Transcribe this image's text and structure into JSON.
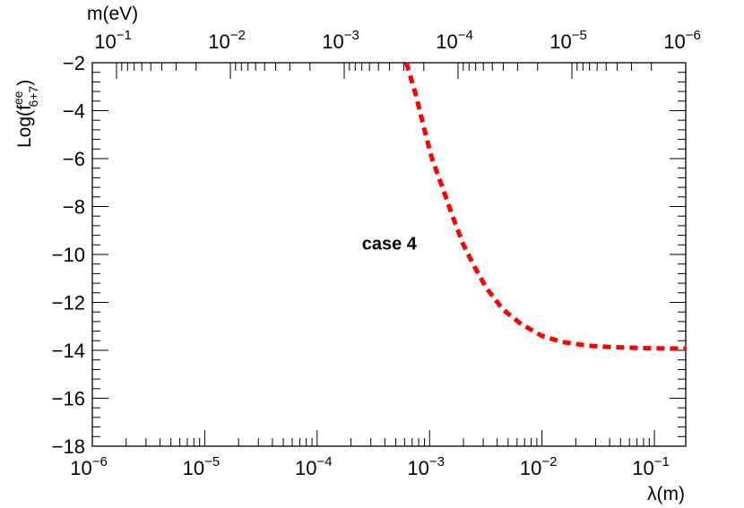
{
  "chart_data": {
    "type": "line",
    "title": "",
    "xlabel": "λ(m)",
    "ylabel": "Log(f",
    "ylabel_sup": "ee",
    "ylabel_sub": "6+7",
    "ylabel_close": ")",
    "x2label": "m(eV)",
    "xscale": "log",
    "x2scale": "log",
    "xlim": [
      1e-06,
      0.19
    ],
    "ylim": [
      -18,
      -2
    ],
    "x_ticks": [
      "10^-6",
      "10^-5",
      "10^-4",
      "10^-3",
      "10^-2",
      "10^-1"
    ],
    "x2_ticks": [
      "10^-1",
      "10^-2",
      "10^-3",
      "10^-4",
      "10^-5",
      "10^-6"
    ],
    "y_ticks": [
      "−2",
      "−4",
      "−6",
      "−8",
      "−10",
      "−12",
      "−14",
      "−16",
      "−18"
    ],
    "grid": false,
    "annotation": {
      "text": "case 4",
      "x": 0.00025,
      "y": -9.8
    },
    "series": [
      {
        "color": "#ff0000",
        "style": "dashed",
        "x": [
          0.00062,
          0.00075,
          0.0009,
          0.00105,
          0.0013,
          0.0016,
          0.002,
          0.0025,
          0.0032,
          0.0045,
          0.0065,
          0.01,
          0.015,
          0.025,
          0.04,
          0.07,
          0.12,
          0.19
        ],
        "y": [
          -2.0,
          -3.3,
          -4.8,
          -6.0,
          -7.2,
          -8.4,
          -9.6,
          -10.5,
          -11.4,
          -12.3,
          -12.9,
          -13.4,
          -13.65,
          -13.8,
          -13.86,
          -13.9,
          -13.92,
          -13.93
        ]
      }
    ]
  }
}
